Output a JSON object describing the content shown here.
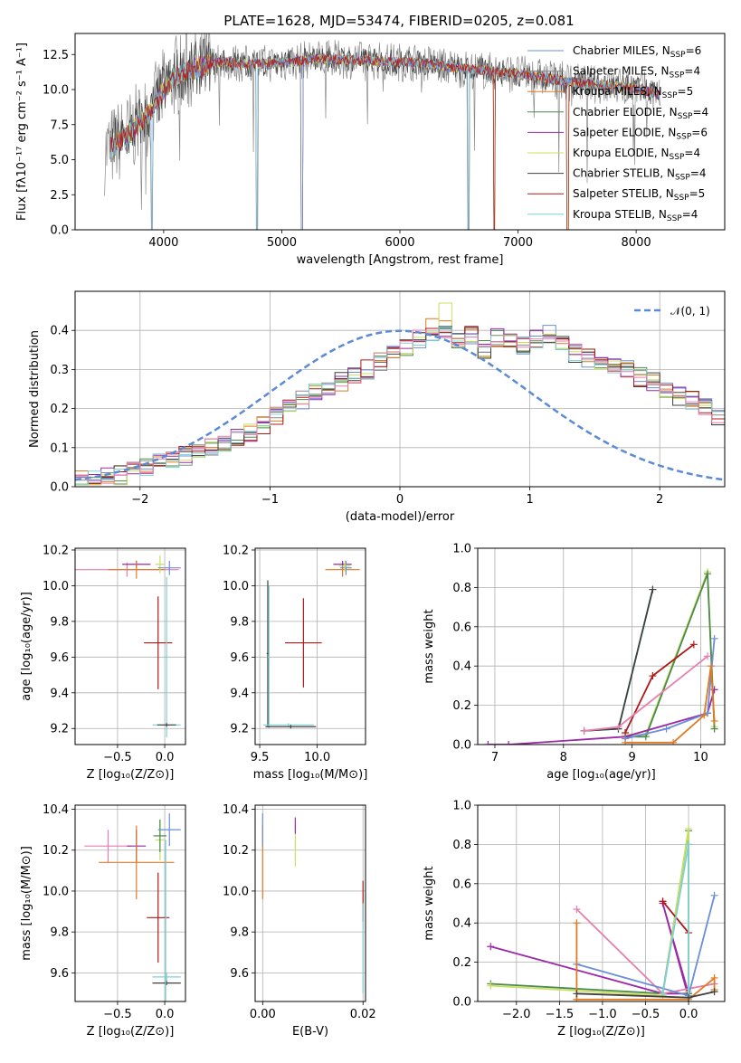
{
  "title": "PLATE=1628, MJD=53474, FIBERID=0205, z=0.081",
  "colors": {
    "Chabrier MILES": "#6a8fd8",
    "Salpeter MILES": "#8a8a8a",
    "Kroupa MILES": "#e07a22",
    "Chabrier ELODIE": "#4a8a4a",
    "Salpeter ELODIE": "#9a2aa8",
    "Kroupa ELODIE": "#c8e060",
    "Chabrier STELIB": "#404040",
    "Salpeter STELIB": "#b01818",
    "Kroupa STELIB": "#7fd0d0",
    "pink": "#e67fb0",
    "normal": "#5b8ad6"
  },
  "chart_data": [
    {
      "id": "spectrum",
      "type": "line",
      "title": "PLATE=1628, MJD=53474, FIBERID=0205, z=0.081",
      "xlabel": "wavelength [Angstrom, rest frame]",
      "ylabel": "Flux [fλ10⁻¹⁷ erg cm⁻² s⁻¹ A⁻¹]",
      "xlim": [
        3250,
        8750
      ],
      "ylim": [
        0,
        14
      ],
      "xticks": [
        "4000",
        "5000",
        "6000",
        "7000",
        "8000"
      ],
      "xtick_values": [
        4000,
        5000,
        6000,
        7000,
        8000
      ],
      "yticks": [
        "0.0",
        "2.5",
        "5.0",
        "7.5",
        "10.0",
        "12.5"
      ],
      "ytick_values": [
        0,
        2.5,
        5,
        7.5,
        10,
        12.5
      ],
      "legend_position": "upper-right",
      "legend": [
        {
          "label": "Chabrier MILES, N",
          "sub": "SSP",
          "eq": "=6",
          "color": "#6a8fd8"
        },
        {
          "label": "Salpeter MILES, N",
          "sub": "SSP",
          "eq": "=4",
          "color": "#8a8a8a"
        },
        {
          "label": "Kroupa MILES, N",
          "sub": "SSP",
          "eq": "=5",
          "color": "#e07a22"
        },
        {
          "label": "Chabrier ELODIE, N",
          "sub": "SSP",
          "eq": "=4",
          "color": "#4a8a4a"
        },
        {
          "label": "Salpeter ELODIE, N",
          "sub": "SSP",
          "eq": "=6",
          "color": "#9a2aa8"
        },
        {
          "label": "Kroupa ELODIE, N",
          "sub": "SSP",
          "eq": "=4",
          "color": "#c8e060"
        },
        {
          "label": "Chabrier STELIB, N",
          "sub": "SSP",
          "eq": "=4",
          "color": "#404040"
        },
        {
          "label": "Salpeter STELIB, N",
          "sub": "SSP",
          "eq": "=5",
          "color": "#b01818"
        },
        {
          "label": "Kroupa STELIB, N",
          "sub": "SSP",
          "eq": "=4",
          "color": "#7fd0d0"
        }
      ],
      "envelope": {
        "x": [
          3500,
          3700,
          3900,
          4000,
          4100,
          4300,
          4500,
          4700,
          5000,
          5300,
          5600,
          5900,
          6200,
          6500,
          6800,
          7100,
          7400,
          7700,
          8000,
          8200
        ],
        "y": [
          5.5,
          6.8,
          8.5,
          10.0,
          11.0,
          11.6,
          12.0,
          11.8,
          11.9,
          12.2,
          12.1,
          12.0,
          11.9,
          11.5,
          11.3,
          11.0,
          10.6,
          10.3,
          10.1,
          9.6
        ]
      },
      "dips": [
        3900,
        4790,
        5170,
        6580,
        6800,
        7420
      ]
    },
    {
      "id": "residuals",
      "type": "bar",
      "xlabel": "(data-model)/error",
      "ylabel": "Normed distribution",
      "xlim": [
        -2.5,
        2.5
      ],
      "ylim": [
        0,
        0.5
      ],
      "xticks": [
        "−2",
        "−1",
        "0",
        "1",
        "2"
      ],
      "xtick_values": [
        -2,
        -1,
        0,
        1,
        2
      ],
      "yticks": [
        "0.0",
        "0.1",
        "0.2",
        "0.3",
        "0.4"
      ],
      "ytick_values": [
        0,
        0.1,
        0.2,
        0.3,
        0.4
      ],
      "legend": [
        {
          "label": "𝒩(0, 1)",
          "color": "#5b8ad6",
          "style": "dashed"
        }
      ],
      "legend_position": "upper-right",
      "bin_width": 0.1,
      "bin_start": -2.5,
      "base_heights": [
        0.02,
        0.02,
        0.03,
        0.03,
        0.04,
        0.05,
        0.06,
        0.07,
        0.08,
        0.09,
        0.1,
        0.11,
        0.13,
        0.14,
        0.16,
        0.18,
        0.2,
        0.22,
        0.24,
        0.25,
        0.27,
        0.29,
        0.3,
        0.32,
        0.34,
        0.36,
        0.38,
        0.39,
        0.4,
        0.38,
        0.39,
        0.35,
        0.38,
        0.37,
        0.36,
        0.38,
        0.39,
        0.36,
        0.34,
        0.33,
        0.32,
        0.31,
        0.3,
        0.28,
        0.27,
        0.25,
        0.23,
        0.22,
        0.2,
        0.18,
        0.17,
        0.15,
        0.14,
        0.12,
        0.11,
        0.1,
        0.09,
        0.08,
        0.07,
        0.06,
        0.05,
        0.05,
        0.04,
        0.04,
        0.03,
        0.03,
        0.03,
        0.02,
        0.02,
        0.02,
        0.02,
        0.02,
        0.02,
        0.02,
        0.02,
        0.02,
        0.02,
        0.02,
        0.02,
        0.02,
        0.02,
        0.02,
        0.02,
        0.02,
        0.02,
        0.02,
        0.02,
        0.02,
        0.02,
        0.02,
        0.02,
        0.02,
        0.02,
        0.02,
        0.02,
        0.02,
        0.02,
        0.02,
        0.02,
        0.02,
        0.02,
        0.02,
        0.02
      ]
    },
    {
      "id": "z-age",
      "type": "scatter",
      "xlabel": "Z [log₁₀(Z/Z⊙)]",
      "ylabel": "age  [log₁₀(age/yr)]",
      "xlim": [
        -0.95,
        0.22
      ],
      "ylim": [
        9.11,
        10.21
      ],
      "xticks": [
        "−0.5",
        "0.0"
      ],
      "xtick_values": [
        -0.5,
        0.0
      ],
      "yticks": [
        "9.2",
        "9.4",
        "9.6",
        "9.8",
        "10.0",
        "10.2"
      ],
      "ytick_values": [
        9.2,
        9.4,
        9.6,
        9.8,
        10.0,
        10.2
      ],
      "points": [
        {
          "x": -0.4,
          "y": 10.09,
          "xerr": 0.55,
          "yerr": 0.04,
          "color": "#e67fb0"
        },
        {
          "x": -0.3,
          "y": 10.12,
          "xerr": 0.15,
          "yerr": 0.02,
          "color": "#9a2aa8"
        },
        {
          "x": -0.3,
          "y": 10.09,
          "xerr": 0.3,
          "yerr": 0.05,
          "color": "#e07a22"
        },
        {
          "x": -0.05,
          "y": 10.12,
          "xerr": 0.05,
          "yerr": 0.05,
          "color": "#c8e060"
        },
        {
          "x": 0.05,
          "y": 10.1,
          "xerr": 0.12,
          "yerr": 0.04,
          "color": "#6a8fd8"
        },
        {
          "x": -0.07,
          "y": 9.68,
          "xerr": 0.15,
          "yerr": 0.26,
          "color": "#b01818"
        },
        {
          "x": 0.02,
          "y": 9.6,
          "xerr": 0.02,
          "yerr": 0.45,
          "color": "#7fd0d0"
        },
        {
          "x": 0.02,
          "y": 9.22,
          "xerr": 0.15,
          "yerr": 0.01,
          "color": "#7fd0d0"
        },
        {
          "x": 0.02,
          "y": 9.22,
          "xerr": 0.1,
          "yerr": 0.01,
          "color": "#404040"
        }
      ]
    },
    {
      "id": "mass-age",
      "type": "scatter",
      "xlabel": "mass [log₁₀(M/M⊙)]",
      "ylabel": "",
      "xlim": [
        9.46,
        10.42
      ],
      "ylim": [
        9.11,
        10.21
      ],
      "xticks": [
        "9.5",
        "10.0"
      ],
      "xtick_values": [
        9.5,
        10.0
      ],
      "yticks": [
        "9.2",
        "9.4",
        "9.6",
        "9.8",
        "10.0",
        "10.2"
      ],
      "ytick_values": [
        9.2,
        9.4,
        9.6,
        9.8,
        10.0,
        10.2
      ],
      "points": [
        {
          "x": 10.22,
          "y": 10.09,
          "xerr": 0.15,
          "yerr": 0.04,
          "color": "#e07a22"
        },
        {
          "x": 10.22,
          "y": 10.12,
          "xerr": 0.08,
          "yerr": 0.02,
          "color": "#9a2aa8"
        },
        {
          "x": 10.25,
          "y": 10.1,
          "xerr": 0.05,
          "yerr": 0.04,
          "color": "#6a8fd8"
        },
        {
          "x": 10.24,
          "y": 10.11,
          "xerr": 0.05,
          "yerr": 0.03,
          "color": "#c8e060"
        },
        {
          "x": 9.88,
          "y": 9.68,
          "xerr": 0.16,
          "yerr": 0.25,
          "color": "#b01818"
        },
        {
          "x": 9.57,
          "y": 9.62,
          "xerr": 0.01,
          "yerr": 0.41,
          "color": "#404040"
        },
        {
          "x": 9.58,
          "y": 9.6,
          "xerr": 0.01,
          "yerr": 0.4,
          "color": "#7fd0d0"
        },
        {
          "x": 9.75,
          "y": 9.22,
          "xerr": 0.22,
          "yerr": 0.01,
          "color": "#7fd0d0"
        },
        {
          "x": 9.77,
          "y": 9.21,
          "xerr": 0.22,
          "yerr": 0.01,
          "color": "#404040"
        }
      ]
    },
    {
      "id": "age-massweight",
      "type": "line",
      "xlabel": "age  [log₁₀(age/yr)]",
      "ylabel": "mass weight",
      "xlim": [
        6.75,
        10.35
      ],
      "ylim": [
        0,
        1.0
      ],
      "xticks": [
        "7",
        "8",
        "9",
        "10"
      ],
      "xtick_values": [
        7,
        8,
        9,
        10
      ],
      "yticks": [
        "0.0",
        "0.2",
        "0.4",
        "0.6",
        "0.8",
        "1.0"
      ],
      "ytick_values": [
        0,
        0.2,
        0.4,
        0.6,
        0.8,
        1.0
      ],
      "series": [
        {
          "color": "#7fd0d0",
          "x": [
            8.3,
            8.8,
            9.3
          ],
          "y": [
            0.07,
            0.08,
            0.79
          ]
        },
        {
          "color": "#404040",
          "x": [
            8.3,
            8.8,
            9.3
          ],
          "y": [
            0.07,
            0.08,
            0.79
          ]
        },
        {
          "color": "#c8e060",
          "x": [
            8.9,
            9.2,
            10.1,
            10.2
          ],
          "y": [
            0.05,
            0.05,
            0.88,
            0.09
          ]
        },
        {
          "color": "#4a8a4a",
          "x": [
            8.9,
            9.2,
            10.1,
            10.2
          ],
          "y": [
            0.04,
            0.04,
            0.87,
            0.08
          ]
        },
        {
          "color": "#b01818",
          "x": [
            8.9,
            9.3,
            9.9
          ],
          "y": [
            0.06,
            0.35,
            0.51
          ]
        },
        {
          "color": "#e67fb0",
          "x": [
            8.3,
            8.8,
            10.1
          ],
          "y": [
            0.07,
            0.09,
            0.45
          ]
        },
        {
          "color": "#9a2aa8",
          "x": [
            6.9,
            7.2,
            8.9,
            10.1,
            10.2
          ],
          "y": [
            0.0,
            0.0,
            0.04,
            0.16,
            0.28
          ]
        },
        {
          "color": "#6a8fd8",
          "x": [
            8.9,
            9.5,
            10.1,
            10.2
          ],
          "y": [
            0.03,
            0.08,
            0.16,
            0.54
          ]
        },
        {
          "color": "#e07a22",
          "x": [
            8.9,
            9.6,
            10.05,
            10.15,
            10.2
          ],
          "y": [
            0.01,
            0.01,
            0.15,
            0.4,
            0.12
          ]
        }
      ]
    },
    {
      "id": "z-mass",
      "type": "scatter",
      "xlabel": "Z [log₁₀(Z/Z⊙)]",
      "ylabel": "mass [log₁₀(M/M⊙)]",
      "xlim": [
        -0.95,
        0.22
      ],
      "ylim": [
        9.46,
        10.42
      ],
      "xticks": [
        "−0.5",
        "0.0"
      ],
      "xtick_values": [
        -0.5,
        0.0
      ],
      "yticks": [
        "9.6",
        "9.8",
        "10.0",
        "10.2",
        "10.4"
      ],
      "ytick_values": [
        9.6,
        9.8,
        10.0,
        10.2,
        10.4
      ],
      "points": [
        {
          "x": -0.6,
          "y": 10.22,
          "xerr": 0.25,
          "yerr": 0.08,
          "color": "#e67fb0"
        },
        {
          "x": -0.3,
          "y": 10.22,
          "xerr": 0.1,
          "yerr": 0.08,
          "color": "#9a2aa8"
        },
        {
          "x": -0.3,
          "y": 10.14,
          "xerr": 0.4,
          "yerr": 0.18,
          "color": "#e07a22"
        },
        {
          "x": -0.05,
          "y": 10.25,
          "xerr": 0.05,
          "yerr": 0.1,
          "color": "#c8e060"
        },
        {
          "x": -0.05,
          "y": 10.27,
          "xerr": 0.07,
          "yerr": 0.08,
          "color": "#4a8a4a"
        },
        {
          "x": 0.05,
          "y": 10.3,
          "xerr": 0.12,
          "yerr": 0.08,
          "color": "#6a8fd8"
        },
        {
          "x": -0.07,
          "y": 9.87,
          "xerr": 0.12,
          "yerr": 0.22,
          "color": "#b01818"
        },
        {
          "x": 0.02,
          "y": 9.58,
          "xerr": 0.15,
          "yerr": 0.02,
          "color": "#7fd0d0"
        },
        {
          "x": 0.02,
          "y": 9.55,
          "xerr": 0.15,
          "yerr": 0.01,
          "color": "#404040"
        },
        {
          "x": 0.01,
          "y": 9.8,
          "xerr": 0.01,
          "yerr": 0.45,
          "color": "#7fd0d0"
        }
      ]
    },
    {
      "id": "ebv-mass",
      "type": "scatter",
      "xlabel": "E(B-V)",
      "ylabel": "",
      "xlim": [
        -0.0015,
        0.0205
      ],
      "ylim": [
        9.46,
        10.42
      ],
      "xticks": [
        "0.00",
        "0.02"
      ],
      "xtick_values": [
        0.0,
        0.02
      ],
      "yticks": [
        "9.6",
        "9.8",
        "10.0",
        "10.2",
        "10.4"
      ],
      "ytick_values": [
        9.6,
        9.8,
        10.0,
        10.2,
        10.4
      ],
      "points": [
        {
          "x": 0.0,
          "y": 10.14,
          "xerr": 0.0,
          "yerr": 0.18,
          "color": "#e07a22"
        },
        {
          "x": 0.0,
          "y": 10.3,
          "xerr": 0.0,
          "yerr": 0.08,
          "color": "#6a8fd8"
        },
        {
          "x": 0.0065,
          "y": 10.22,
          "xerr": 0.0,
          "yerr": 0.1,
          "color": "#c8e060"
        },
        {
          "x": 0.0065,
          "y": 10.32,
          "xerr": 0.0,
          "yerr": 0.04,
          "color": "#9a2aa8"
        },
        {
          "x": 0.02,
          "y": 9.95,
          "xerr": 0.0,
          "yerr": 0.1,
          "color": "#b01818"
        },
        {
          "x": 0.02,
          "y": 9.72,
          "xerr": 0.0,
          "yerr": 0.22,
          "color": "#7fd0d0"
        }
      ]
    },
    {
      "id": "z-massweight",
      "type": "line",
      "xlabel": "Z [log₁₀(Z/Z⊙)]",
      "ylabel": "mass weight",
      "xlim": [
        -2.45,
        0.42
      ],
      "ylim": [
        0,
        1.0
      ],
      "xticks": [
        "−2.0",
        "−1.5",
        "−1.0",
        "−0.5",
        "0.0"
      ],
      "xtick_values": [
        -2.0,
        -1.5,
        -1.0,
        -0.5,
        0.0
      ],
      "yticks": [
        "0.0",
        "0.2",
        "0.4",
        "0.6",
        "0.8",
        "1.0"
      ],
      "ytick_values": [
        0,
        0.2,
        0.4,
        0.6,
        0.8,
        1.0
      ],
      "series": [
        {
          "color": "#9a2aa8",
          "x": [
            -2.3,
            -0.3,
            0.0,
            -0.3,
            0.0
          ],
          "y": [
            0.28,
            0.04,
            0.04,
            0.5,
            0.02
          ]
        },
        {
          "color": "#4a8a4a",
          "x": [
            -2.3,
            -0.3,
            0.0,
            0.0
          ],
          "y": [
            0.09,
            0.04,
            0.87,
            0.04
          ]
        },
        {
          "color": "#c8e060",
          "x": [
            -2.3,
            -0.3,
            0.0,
            0.0
          ],
          "y": [
            0.08,
            0.03,
            0.88,
            0.05
          ]
        },
        {
          "color": "#e67fb0",
          "x": [
            -1.3,
            -0.3,
            0.3
          ],
          "y": [
            0.47,
            0.04,
            0.09
          ]
        },
        {
          "color": "#6a8fd8",
          "x": [
            -1.3,
            0.0,
            0.3
          ],
          "y": [
            0.19,
            0.03,
            0.54
          ]
        },
        {
          "color": "#e07a22",
          "x": [
            -1.3,
            -1.3,
            -1.3,
            0.0,
            0.3,
            0.3
          ],
          "y": [
            0.4,
            0.01,
            0.01,
            0.01,
            0.12,
            0.06
          ]
        },
        {
          "color": "#b01818",
          "x": [
            -0.3,
            -0.3,
            0.0
          ],
          "y": [
            0.51,
            0.51,
            0.35
          ]
        },
        {
          "color": "#7fd0d0",
          "x": [
            -0.3,
            0.0,
            0.0
          ],
          "y": [
            0.04,
            0.8,
            0.02
          ]
        },
        {
          "color": "#404040",
          "x": [
            -1.3,
            0.0,
            0.3
          ],
          "y": [
            0.04,
            0.02,
            0.05
          ]
        }
      ]
    }
  ]
}
